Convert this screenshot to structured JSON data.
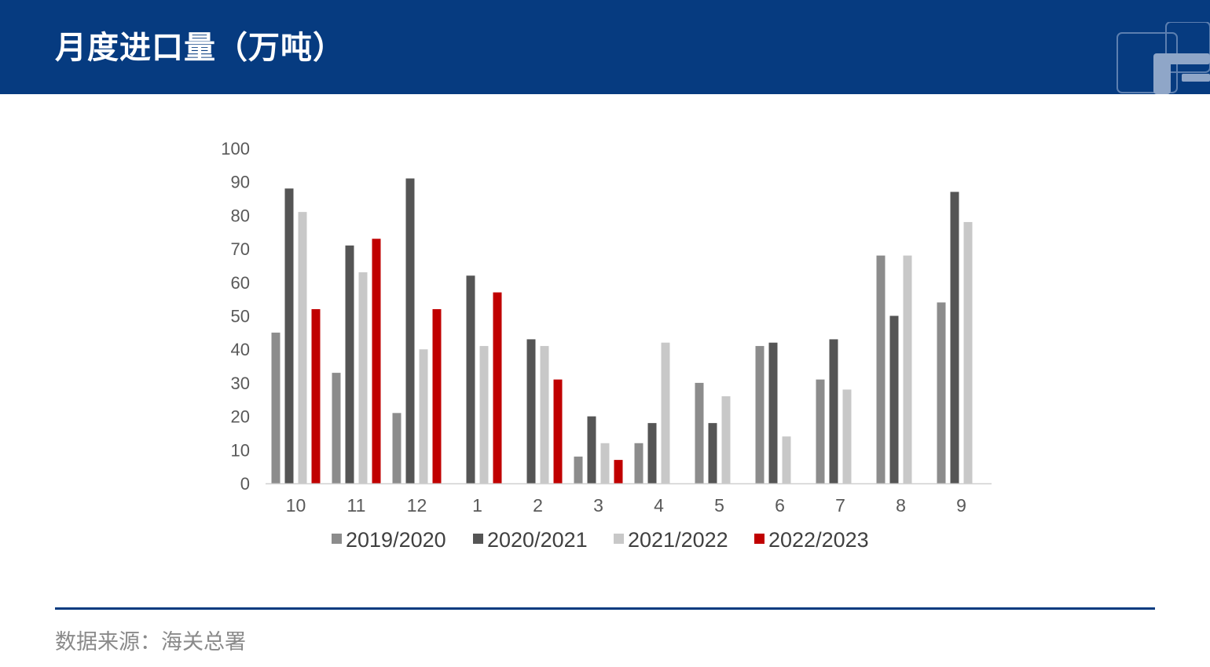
{
  "header": {
    "title": "月度进口量（万吨）"
  },
  "footer": {
    "source": "数据来源：海关总署"
  },
  "colors": {
    "header_bg": "#063b80",
    "rule": "#063b80",
    "source_text": "#8a8a8a"
  },
  "chart_data": {
    "type": "bar",
    "title": "",
    "xlabel": "",
    "ylabel": "",
    "ylim": [
      0,
      100
    ],
    "yticks": [
      0,
      10,
      20,
      30,
      40,
      50,
      60,
      70,
      80,
      90,
      100
    ],
    "grid": false,
    "legend_position": "bottom",
    "categories": [
      "10",
      "11",
      "12",
      "1",
      "2",
      "3",
      "4",
      "5",
      "6",
      "7",
      "8",
      "9"
    ],
    "series": [
      {
        "name": "2019/2020",
        "color": "#8c8c8c",
        "values": [
          45,
          33,
          21,
          0,
          0,
          8,
          12,
          30,
          41,
          31,
          68,
          54
        ]
      },
      {
        "name": "2020/2021",
        "color": "#555555",
        "values": [
          88,
          71,
          91,
          62,
          43,
          20,
          18,
          18,
          42,
          43,
          50,
          87
        ]
      },
      {
        "name": "2021/2022",
        "color": "#c8c8c8",
        "values": [
          81,
          63,
          40,
          41,
          41,
          12,
          42,
          26,
          14,
          28,
          68,
          78
        ]
      },
      {
        "name": "2022/2023",
        "color": "#c00000",
        "values": [
          52,
          73,
          52,
          57,
          31,
          7,
          null,
          null,
          null,
          null,
          null,
          null
        ]
      }
    ]
  }
}
